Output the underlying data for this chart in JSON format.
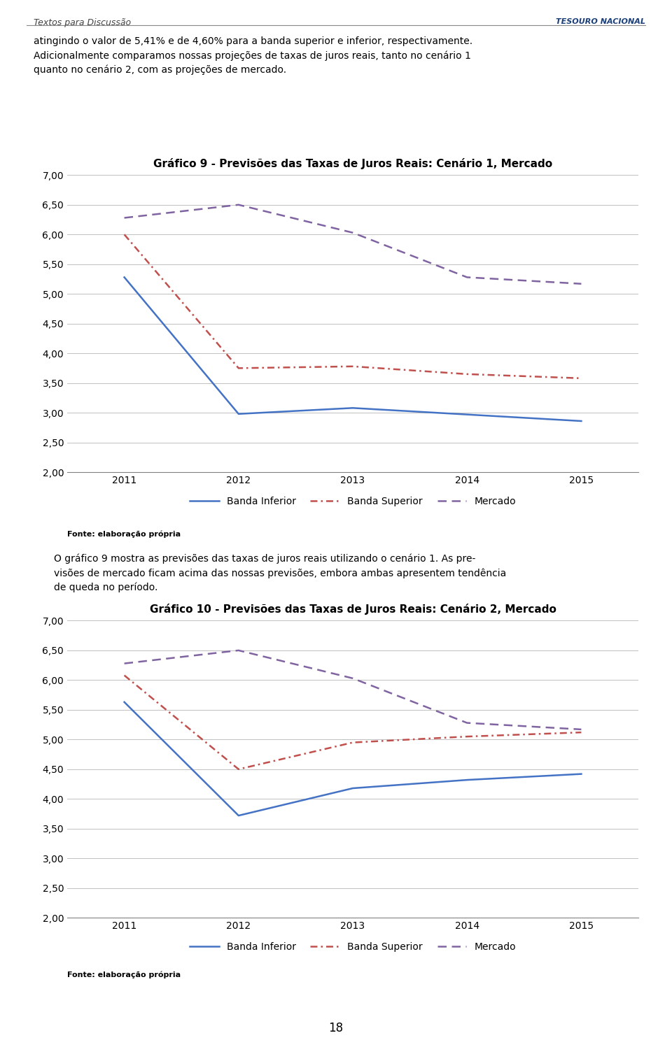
{
  "chart1": {
    "title": "Gráfico 9 - Previsões das Taxas de Juros Reais: Cenário 1, Mercado",
    "years": [
      2011,
      2012,
      2013,
      2014,
      2015
    ],
    "banda_inferior": [
      5.28,
      2.98,
      3.08,
      2.97,
      2.86
    ],
    "banda_superior": [
      6.0,
      3.75,
      3.78,
      3.65,
      3.58
    ],
    "mercado": [
      6.28,
      6.5,
      6.03,
      5.28,
      5.17
    ]
  },
  "chart2": {
    "title": "Gráfico 10 - Previsões das Taxas de Juros Reais: Cenário 2, Mercado",
    "years": [
      2011,
      2012,
      2013,
      2014,
      2015
    ],
    "banda_inferior": [
      5.63,
      3.72,
      4.18,
      4.32,
      4.42
    ],
    "banda_superior": [
      6.08,
      4.5,
      4.95,
      5.05,
      5.12
    ],
    "mercado": [
      6.28,
      6.5,
      6.03,
      5.28,
      5.17
    ]
  },
  "colors": {
    "banda_inferior": "#4472C4",
    "banda_superior": "#C0504D",
    "mercado": "#8064A2"
  },
  "ylim": [
    2.0,
    7.0
  ],
  "yticks": [
    2.0,
    2.5,
    3.0,
    3.5,
    4.0,
    4.5,
    5.0,
    5.5,
    6.0,
    6.5,
    7.0
  ],
  "fonte_text": "Fonte: elaboração própria",
  "header_text": "Textos para Discussão",
  "logo_text": "TESOURO NACIONAL",
  "page_texts": [
    "atingindo o valor de 5,41% e de 4,60% para a banda superior e inferior, respectivamente.",
    "Adicionalmente comparamos nossas projeções de taxas de juros reais, tanto no cenário 1",
    "quanto no cenário 2, com as projeções de mercado."
  ],
  "body_texts": [
    "O gráfico 9 mostra as previsões das taxas de juros reais utilizando o cenário 1. As pre-",
    "visões de mercado ficam acima das nossas previsões, embora ambas apresentem tendência",
    "de queda no período."
  ],
  "page_number": "18",
  "legend_labels": [
    "Banda Inferior",
    "Banda Superior",
    "Mercado"
  ]
}
